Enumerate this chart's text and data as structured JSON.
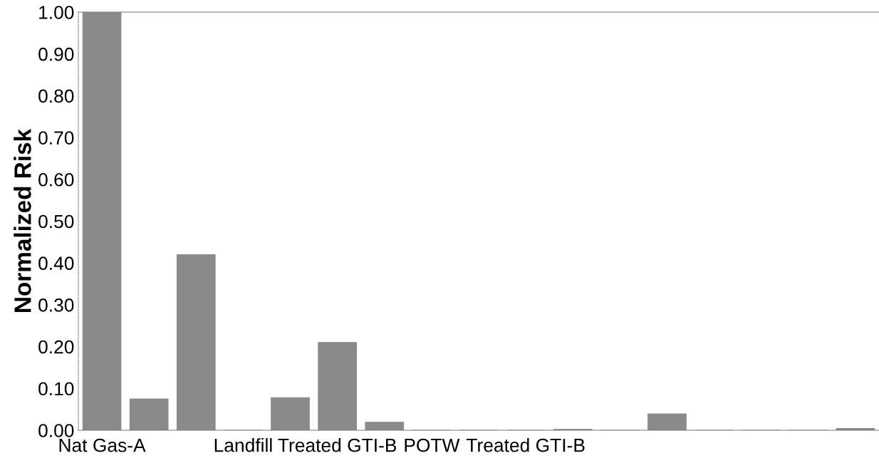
{
  "chart_data": {
    "type": "bar",
    "ylabel": "Normalized Risk",
    "categories": [
      "Nat Gas-A",
      null,
      null,
      "Landfill",
      null,
      "Treated GTI-B",
      null,
      "POTW",
      null,
      "Treated GTI-B",
      null,
      null,
      null,
      null,
      null,
      null,
      null
    ],
    "values": [
      1.0,
      0.075,
      0.42,
      0,
      0.078,
      0.21,
      0.019,
      0,
      0,
      0,
      0.002,
      0,
      0.039,
      0,
      0,
      0,
      0.004
    ],
    "color": "#8a8a8a",
    "ylim": [
      0,
      1.0
    ],
    "yticks": [
      {
        "value": 0,
        "label": "0.00"
      },
      {
        "value": 0.1,
        "label": "0.10"
      },
      {
        "value": 0.2,
        "label": "0.20"
      },
      {
        "value": 0.3,
        "label": "0.30"
      },
      {
        "value": 0.4,
        "label": "0.40"
      },
      {
        "value": 0.5,
        "label": "0.50"
      },
      {
        "value": 0.6,
        "label": "0.60"
      },
      {
        "value": 0.7,
        "label": "0.70"
      },
      {
        "value": 0.8,
        "label": "0.80"
      },
      {
        "value": 0.9,
        "label": "0.90"
      },
      {
        "value": 1.0,
        "label": "1.00"
      }
    ],
    "grid": false
  }
}
